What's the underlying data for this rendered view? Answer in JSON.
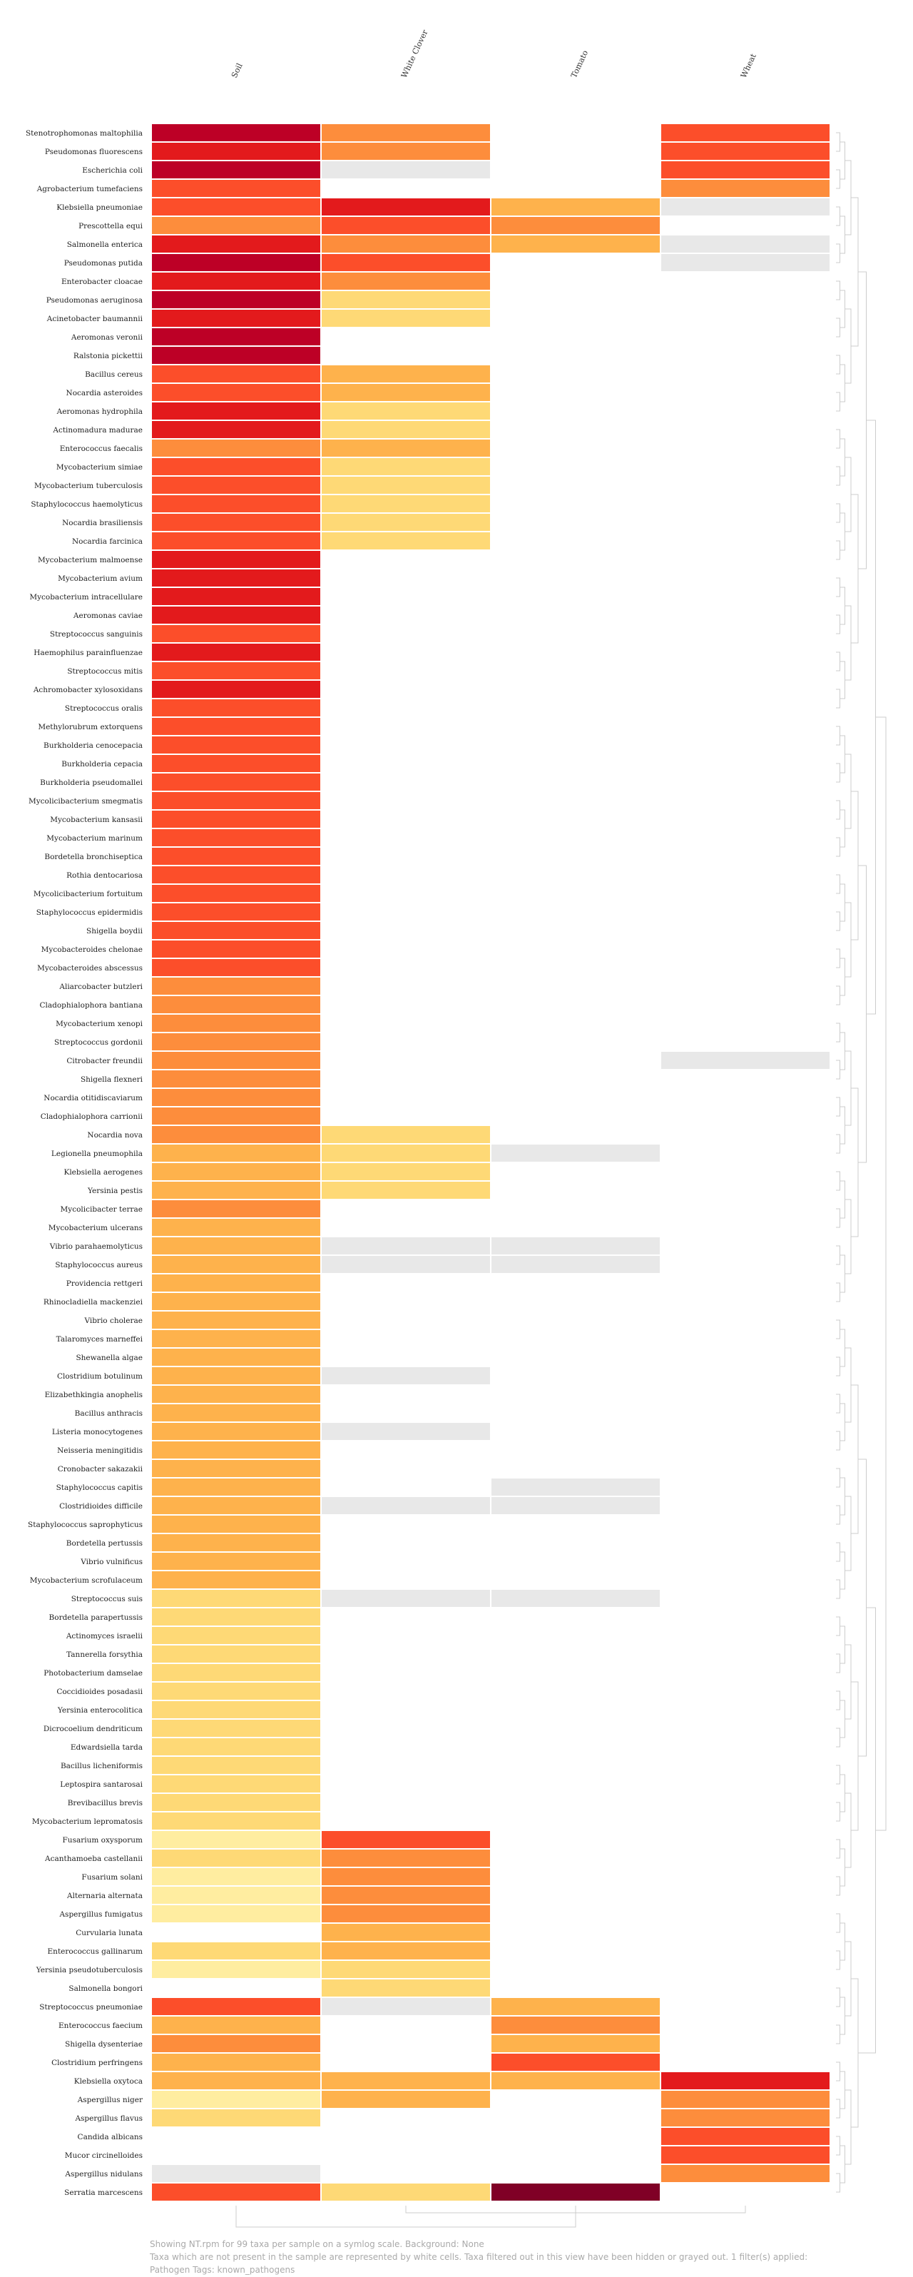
{
  "chart_data": {
    "type": "heatmap",
    "color_scale": "symlog",
    "columns": [
      "Soil",
      "White Clover",
      "Tomato",
      "Wheat"
    ],
    "legend_note": "value 0 = not present (white), null = hidden/grayed out",
    "palette": {
      "1": "#ffeda0",
      "2": "#fed976",
      "3": "#feb24c",
      "4": "#fd8d3c",
      "5": "#fc4e2a",
      "6": "#e31a1c",
      "7": "#bd0026",
      "8": "#800026",
      "absent": "#ffffff",
      "filtered": "#e8e8e8",
      "dendrogram": "#cccccc"
    },
    "rows": [
      {
        "taxon": "Stenotrophomonas maltophilia",
        "values": [
          7,
          4,
          0,
          5
        ]
      },
      {
        "taxon": "Pseudomonas fluorescens",
        "values": [
          6,
          4,
          0,
          5
        ]
      },
      {
        "taxon": "Escherichia coli",
        "values": [
          7,
          null,
          0,
          5
        ]
      },
      {
        "taxon": "Agrobacterium tumefaciens",
        "values": [
          5,
          0,
          0,
          4
        ]
      },
      {
        "taxon": "Klebsiella pneumoniae",
        "values": [
          5,
          6,
          3,
          null
        ]
      },
      {
        "taxon": "Prescottella equi",
        "values": [
          4,
          5,
          4,
          0
        ]
      },
      {
        "taxon": "Salmonella enterica",
        "values": [
          6,
          4,
          3,
          null
        ]
      },
      {
        "taxon": "Pseudomonas putida",
        "values": [
          7,
          5,
          0,
          null
        ]
      },
      {
        "taxon": "Enterobacter cloacae",
        "values": [
          6,
          4,
          0,
          0
        ]
      },
      {
        "taxon": "Pseudomonas aeruginosa",
        "values": [
          7,
          2,
          0,
          0
        ]
      },
      {
        "taxon": "Acinetobacter baumannii",
        "values": [
          6,
          2,
          0,
          0
        ]
      },
      {
        "taxon": "Aeromonas veronii",
        "values": [
          7,
          0,
          0,
          0
        ]
      },
      {
        "taxon": "Ralstonia pickettii",
        "values": [
          7,
          0,
          0,
          0
        ]
      },
      {
        "taxon": "Bacillus cereus",
        "values": [
          5,
          3,
          0,
          0
        ]
      },
      {
        "taxon": "Nocardia asteroides",
        "values": [
          5,
          3,
          0,
          0
        ]
      },
      {
        "taxon": "Aeromonas hydrophila",
        "values": [
          6,
          2,
          0,
          0
        ]
      },
      {
        "taxon": "Actinomadura madurae",
        "values": [
          6,
          2,
          0,
          0
        ]
      },
      {
        "taxon": "Enterococcus faecalis",
        "values": [
          4,
          3,
          0,
          0
        ]
      },
      {
        "taxon": "Mycobacterium simiae",
        "values": [
          5,
          2,
          0,
          0
        ]
      },
      {
        "taxon": "Mycobacterium tuberculosis",
        "values": [
          5,
          2,
          0,
          0
        ]
      },
      {
        "taxon": "Staphylococcus haemolyticus",
        "values": [
          5,
          2,
          0,
          0
        ]
      },
      {
        "taxon": "Nocardia brasiliensis",
        "values": [
          5,
          2,
          0,
          0
        ]
      },
      {
        "taxon": "Nocardia farcinica",
        "values": [
          5,
          2,
          0,
          0
        ]
      },
      {
        "taxon": "Mycobacterium malmoense",
        "values": [
          6,
          0,
          0,
          0
        ]
      },
      {
        "taxon": "Mycobacterium avium",
        "values": [
          6,
          0,
          0,
          0
        ]
      },
      {
        "taxon": "Mycobacterium intracellulare",
        "values": [
          6,
          0,
          0,
          0
        ]
      },
      {
        "taxon": "Aeromonas caviae",
        "values": [
          6,
          0,
          0,
          0
        ]
      },
      {
        "taxon": "Streptococcus sanguinis",
        "values": [
          5,
          0,
          0,
          0
        ]
      },
      {
        "taxon": "Haemophilus parainfluenzae",
        "values": [
          6,
          0,
          0,
          0
        ]
      },
      {
        "taxon": "Streptococcus mitis",
        "values": [
          5,
          0,
          0,
          0
        ]
      },
      {
        "taxon": "Achromobacter xylosoxidans",
        "values": [
          6,
          0,
          0,
          0
        ]
      },
      {
        "taxon": "Streptococcus oralis",
        "values": [
          5,
          0,
          0,
          0
        ]
      },
      {
        "taxon": "Methylorubrum extorquens",
        "values": [
          5,
          0,
          0,
          0
        ]
      },
      {
        "taxon": "Burkholderia cenocepacia",
        "values": [
          5,
          0,
          0,
          0
        ]
      },
      {
        "taxon": "Burkholderia cepacia",
        "values": [
          5,
          0,
          0,
          0
        ]
      },
      {
        "taxon": "Burkholderia pseudomallei",
        "values": [
          5,
          0,
          0,
          0
        ]
      },
      {
        "taxon": "Mycolicibacterium smegmatis",
        "values": [
          5,
          0,
          0,
          0
        ]
      },
      {
        "taxon": "Mycobacterium kansasii",
        "values": [
          5,
          0,
          0,
          0
        ]
      },
      {
        "taxon": "Mycobacterium marinum",
        "values": [
          5,
          0,
          0,
          0
        ]
      },
      {
        "taxon": "Bordetella bronchiseptica",
        "values": [
          5,
          0,
          0,
          0
        ]
      },
      {
        "taxon": "Rothia dentocariosa",
        "values": [
          5,
          0,
          0,
          0
        ]
      },
      {
        "taxon": "Mycolicibacterium fortuitum",
        "values": [
          5,
          0,
          0,
          0
        ]
      },
      {
        "taxon": "Staphylococcus epidermidis",
        "values": [
          5,
          0,
          0,
          0
        ]
      },
      {
        "taxon": "Shigella boydii",
        "values": [
          5,
          0,
          0,
          0
        ]
      },
      {
        "taxon": "Mycobacteroides chelonae",
        "values": [
          5,
          0,
          0,
          0
        ]
      },
      {
        "taxon": "Mycobacteroides abscessus",
        "values": [
          5,
          0,
          0,
          0
        ]
      },
      {
        "taxon": "Aliarcobacter butzleri",
        "values": [
          4,
          0,
          0,
          0
        ]
      },
      {
        "taxon": "Cladophialophora bantiana",
        "values": [
          4,
          0,
          0,
          0
        ]
      },
      {
        "taxon": "Mycobacterium xenopi",
        "values": [
          4,
          0,
          0,
          0
        ]
      },
      {
        "taxon": "Streptococcus gordonii",
        "values": [
          4,
          0,
          0,
          0
        ]
      },
      {
        "taxon": "Citrobacter freundii",
        "values": [
          4,
          0,
          0,
          null
        ]
      },
      {
        "taxon": "Shigella flexneri",
        "values": [
          4,
          0,
          0,
          0
        ]
      },
      {
        "taxon": "Nocardia otitidiscaviarum",
        "values": [
          4,
          0,
          0,
          0
        ]
      },
      {
        "taxon": "Cladophialophora carrionii",
        "values": [
          4,
          0,
          0,
          0
        ]
      },
      {
        "taxon": "Nocardia nova",
        "values": [
          4,
          2,
          0,
          0
        ]
      },
      {
        "taxon": "Legionella pneumophila",
        "values": [
          3,
          2,
          null,
          0
        ]
      },
      {
        "taxon": "Klebsiella aerogenes",
        "values": [
          3,
          2,
          0,
          0
        ]
      },
      {
        "taxon": "Yersinia pestis",
        "values": [
          3,
          2,
          0,
          0
        ]
      },
      {
        "taxon": "Mycolicibacter terrae",
        "values": [
          4,
          0,
          0,
          0
        ]
      },
      {
        "taxon": "Mycobacterium ulcerans",
        "values": [
          3,
          0,
          0,
          0
        ]
      },
      {
        "taxon": "Vibrio parahaemolyticus",
        "values": [
          3,
          null,
          null,
          0
        ]
      },
      {
        "taxon": "Staphylococcus aureus",
        "values": [
          3,
          null,
          null,
          0
        ]
      },
      {
        "taxon": "Providencia rettgeri",
        "values": [
          3,
          0,
          0,
          0
        ]
      },
      {
        "taxon": "Rhinocladiella mackenziei",
        "values": [
          3,
          0,
          0,
          0
        ]
      },
      {
        "taxon": "Vibrio cholerae",
        "values": [
          3,
          0,
          0,
          0
        ]
      },
      {
        "taxon": "Talaromyces marneffei",
        "values": [
          3,
          0,
          0,
          0
        ]
      },
      {
        "taxon": "Shewanella algae",
        "values": [
          3,
          0,
          0,
          0
        ]
      },
      {
        "taxon": "Clostridium botulinum",
        "values": [
          3,
          null,
          0,
          0
        ]
      },
      {
        "taxon": "Elizabethkingia anophelis",
        "values": [
          3,
          0,
          0,
          0
        ]
      },
      {
        "taxon": "Bacillus anthracis",
        "values": [
          3,
          0,
          0,
          0
        ]
      },
      {
        "taxon": "Listeria monocytogenes",
        "values": [
          3,
          null,
          0,
          0
        ]
      },
      {
        "taxon": "Neisseria meningitidis",
        "values": [
          3,
          0,
          0,
          0
        ]
      },
      {
        "taxon": "Cronobacter sakazakii",
        "values": [
          3,
          0,
          0,
          0
        ]
      },
      {
        "taxon": "Staphylococcus capitis",
        "values": [
          3,
          0,
          null,
          0
        ]
      },
      {
        "taxon": "Clostridioides difficile",
        "values": [
          3,
          null,
          null,
          0
        ]
      },
      {
        "taxon": "Staphylococcus saprophyticus",
        "values": [
          3,
          0,
          0,
          0
        ]
      },
      {
        "taxon": "Bordetella pertussis",
        "values": [
          3,
          0,
          0,
          0
        ]
      },
      {
        "taxon": "Vibrio vulnificus",
        "values": [
          3,
          0,
          0,
          0
        ]
      },
      {
        "taxon": "Mycobacterium scrofulaceum",
        "values": [
          3,
          0,
          0,
          0
        ]
      },
      {
        "taxon": "Streptococcus suis",
        "values": [
          2,
          null,
          null,
          0
        ]
      },
      {
        "taxon": "Bordetella parapertussis",
        "values": [
          2,
          0,
          0,
          0
        ]
      },
      {
        "taxon": "Actinomyces israelii",
        "values": [
          2,
          0,
          0,
          0
        ]
      },
      {
        "taxon": "Tannerella forsythia",
        "values": [
          2,
          0,
          0,
          0
        ]
      },
      {
        "taxon": "Photobacterium damselae",
        "values": [
          2,
          0,
          0,
          0
        ]
      },
      {
        "taxon": "Coccidioides posadasii",
        "values": [
          2,
          0,
          0,
          0
        ]
      },
      {
        "taxon": "Yersinia enterocolitica",
        "values": [
          2,
          0,
          0,
          0
        ]
      },
      {
        "taxon": "Dicrocoelium dendriticum",
        "values": [
          2,
          0,
          0,
          0
        ]
      },
      {
        "taxon": "Edwardsiella tarda",
        "values": [
          2,
          0,
          0,
          0
        ]
      },
      {
        "taxon": "Bacillus licheniformis",
        "values": [
          2,
          0,
          0,
          0
        ]
      },
      {
        "taxon": "Leptospira santarosai",
        "values": [
          2,
          0,
          0,
          0
        ]
      },
      {
        "taxon": "Brevibacillus brevis",
        "values": [
          2,
          0,
          0,
          0
        ]
      },
      {
        "taxon": "Mycobacterium lepromatosis",
        "values": [
          2,
          0,
          0,
          0
        ]
      },
      {
        "taxon": "Fusarium oxysporum",
        "values": [
          1,
          5,
          0,
          0
        ]
      },
      {
        "taxon": "Acanthamoeba castellanii",
        "values": [
          2,
          4,
          0,
          0
        ]
      },
      {
        "taxon": "Fusarium solani",
        "values": [
          1,
          4,
          0,
          0
        ]
      },
      {
        "taxon": "Alternaria alternata",
        "values": [
          1,
          4,
          0,
          0
        ]
      },
      {
        "taxon": "Aspergillus fumigatus",
        "values": [
          1,
          4,
          0,
          0
        ]
      },
      {
        "taxon": "Curvularia lunata",
        "values": [
          0,
          3,
          0,
          0
        ]
      },
      {
        "taxon": "Enterococcus gallinarum",
        "values": [
          2,
          3,
          0,
          0
        ]
      },
      {
        "taxon": "Yersinia pseudotuberculosis",
        "values": [
          1,
          2,
          0,
          0
        ]
      },
      {
        "taxon": "Salmonella bongori",
        "values": [
          0,
          2,
          0,
          0
        ]
      },
      {
        "taxon": "Streptococcus pneumoniae",
        "values": [
          5,
          null,
          3,
          0
        ]
      },
      {
        "taxon": "Enterococcus faecium",
        "values": [
          3,
          0,
          4,
          0
        ]
      },
      {
        "taxon": "Shigella dysenteriae",
        "values": [
          4,
          0,
          3,
          0
        ]
      },
      {
        "taxon": "Clostridium perfringens",
        "values": [
          3,
          0,
          5,
          0
        ]
      },
      {
        "taxon": "Klebsiella oxytoca",
        "values": [
          3,
          3,
          3,
          6
        ]
      },
      {
        "taxon": "Aspergillus niger",
        "values": [
          1,
          3,
          0,
          4
        ]
      },
      {
        "taxon": "Aspergillus flavus",
        "values": [
          2,
          0,
          0,
          4
        ]
      },
      {
        "taxon": "Candida albicans",
        "values": [
          0,
          0,
          0,
          5
        ]
      },
      {
        "taxon": "Mucor circinelloides",
        "values": [
          0,
          0,
          0,
          5
        ]
      },
      {
        "taxon": "Aspergillus nidulans",
        "values": [
          null,
          0,
          0,
          4
        ]
      },
      {
        "taxon": "Serratia marcescens",
        "values": [
          5,
          2,
          8,
          0
        ]
      }
    ]
  },
  "caption": {
    "line1": "Showing NT.rpm for 99 taxa per sample on a symlog scale. Background: None",
    "line2": "Taxa which are not present in the sample are represented by white cells. Taxa filtered out in this view have been hidden or grayed out. 1 filter(s) applied:",
    "line3": "Pathogen Tags: known_pathogens"
  }
}
